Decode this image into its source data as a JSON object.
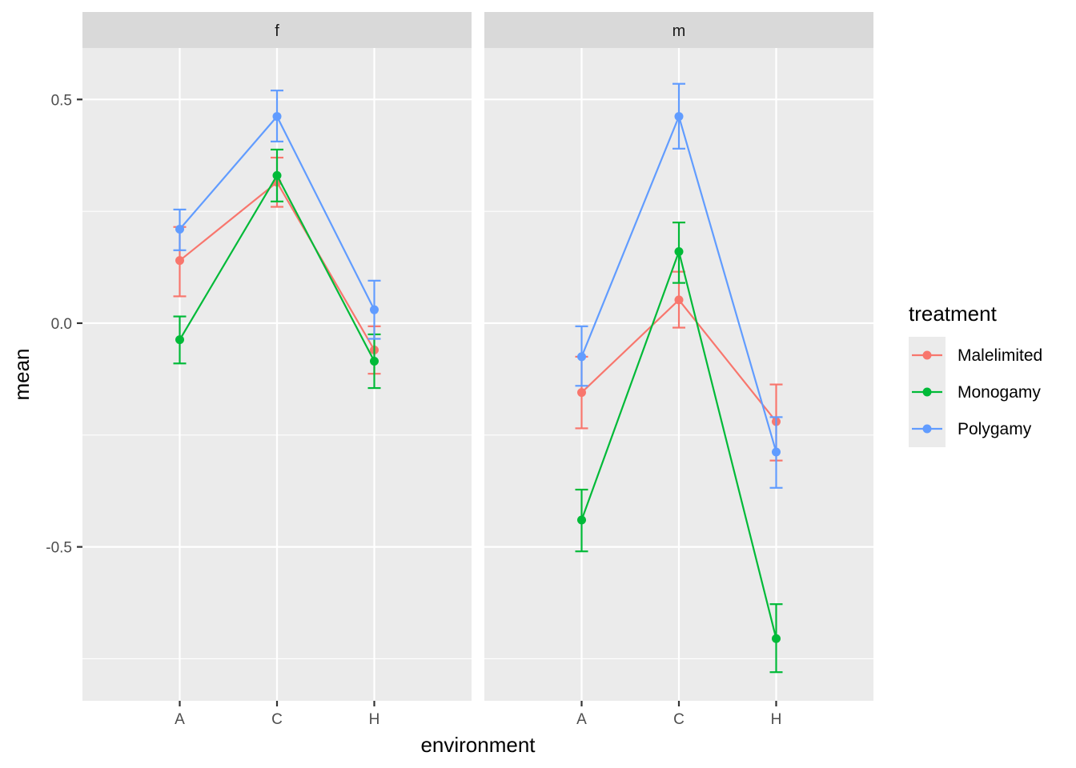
{
  "chart_data": {
    "type": "line",
    "xlabel": "environment",
    "ylabel": "mean",
    "categories": [
      "A",
      "C",
      "H"
    ],
    "ylim": [
      -0.844,
      0.615
    ],
    "y_ticks": [
      -0.5,
      0.0,
      0.5
    ],
    "y_tick_labels": [
      "-0.5",
      "0.0",
      "0.5"
    ],
    "facets": [
      "f",
      "m"
    ],
    "legend": {
      "title": "treatment",
      "position": "right",
      "entries": [
        "Malelimited",
        "Monogamy",
        "Polygamy"
      ]
    },
    "colors": {
      "Malelimited": "#F8766D",
      "Monogamy": "#00BA38",
      "Polygamy": "#619CFF"
    },
    "panels": [
      {
        "facet": "f",
        "series": [
          {
            "name": "Malelimited",
            "values": [
              0.14,
              0.315,
              -0.06
            ],
            "lower": [
              0.06,
              0.26,
              -0.113
            ],
            "upper": [
              0.215,
              0.37,
              -0.007
            ]
          },
          {
            "name": "Monogamy",
            "values": [
              -0.037,
              0.33,
              -0.085
            ],
            "lower": [
              -0.09,
              0.272,
              -0.145
            ],
            "upper": [
              0.015,
              0.388,
              -0.025
            ]
          },
          {
            "name": "Polygamy",
            "values": [
              0.21,
              0.462,
              0.03
            ],
            "lower": [
              0.163,
              0.406,
              -0.035
            ],
            "upper": [
              0.254,
              0.52,
              0.095
            ]
          }
        ]
      },
      {
        "facet": "m",
        "series": [
          {
            "name": "Malelimited",
            "values": [
              -0.155,
              0.052,
              -0.22
            ],
            "lower": [
              -0.235,
              -0.01,
              -0.307
            ],
            "upper": [
              -0.075,
              0.115,
              -0.137
            ]
          },
          {
            "name": "Monogamy",
            "values": [
              -0.44,
              0.16,
              -0.705
            ],
            "lower": [
              -0.51,
              0.09,
              -0.78
            ],
            "upper": [
              -0.372,
              0.225,
              -0.628
            ]
          },
          {
            "name": "Polygamy",
            "values": [
              -0.075,
              0.462,
              -0.288
            ],
            "lower": [
              -0.14,
              0.39,
              -0.368
            ],
            "upper": [
              -0.007,
              0.535,
              -0.21
            ]
          }
        ]
      }
    ]
  }
}
